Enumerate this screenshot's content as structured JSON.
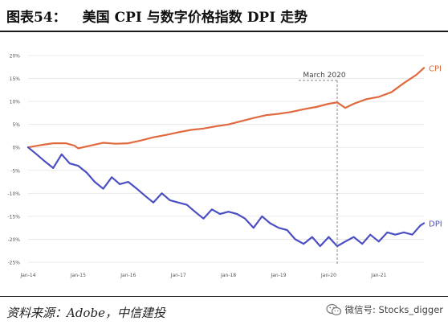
{
  "header": {
    "figure_label": "图表54：",
    "title": "美国 CPI 与数字价格指数 DPI 走势"
  },
  "footer": {
    "source": "资料来源：Adobe，中信建投",
    "watermark": "微信号: Stocks_digger"
  },
  "colors": {
    "cpi": "#e0693e",
    "dpi": "#4b4fc4",
    "annotation": "#888888"
  },
  "chart_data": {
    "type": "line",
    "title": "",
    "xlabel": "",
    "ylabel": "",
    "ylim": [
      -25,
      20
    ],
    "yticks": [
      20,
      15,
      10,
      5,
      0,
      -5,
      -10,
      -15,
      -20,
      -25
    ],
    "ytick_labels": [
      "20%",
      "15%",
      "10%",
      "5%",
      "0%",
      "-5%",
      "-10%",
      "-15%",
      "-20%",
      "-25%"
    ],
    "xticks": [
      {
        "label": "Jan-14",
        "t": 0
      },
      {
        "label": "Jan-15",
        "t": 1
      },
      {
        "label": "Jan-16",
        "t": 2
      },
      {
        "label": "Jan-17",
        "t": 3
      },
      {
        "label": "Jan-18",
        "t": 4
      },
      {
        "label": "Jan-19",
        "t": 5
      },
      {
        "label": "Jan-20",
        "t": 6
      },
      {
        "label": "Jan-21",
        "t": 7
      }
    ],
    "xlim": [
      0,
      7.9
    ],
    "grid": true,
    "annotation": {
      "label": "March 2020",
      "t": 6.17
    },
    "series": [
      {
        "name": "CPI",
        "label_position": "right-end",
        "points": [
          [
            0.0,
            0.0
          ],
          [
            0.25,
            0.5
          ],
          [
            0.5,
            0.9
          ],
          [
            0.75,
            0.9
          ],
          [
            0.92,
            0.4
          ],
          [
            1.0,
            -0.2
          ],
          [
            1.25,
            0.4
          ],
          [
            1.5,
            1.0
          ],
          [
            1.75,
            0.8
          ],
          [
            2.0,
            0.9
          ],
          [
            2.25,
            1.5
          ],
          [
            2.5,
            2.2
          ],
          [
            2.75,
            2.7
          ],
          [
            3.0,
            3.3
          ],
          [
            3.25,
            3.8
          ],
          [
            3.5,
            4.1
          ],
          [
            3.75,
            4.6
          ],
          [
            4.0,
            5.0
          ],
          [
            4.25,
            5.7
          ],
          [
            4.5,
            6.4
          ],
          [
            4.75,
            7.0
          ],
          [
            5.0,
            7.3
          ],
          [
            5.25,
            7.7
          ],
          [
            5.5,
            8.3
          ],
          [
            5.75,
            8.8
          ],
          [
            6.0,
            9.5
          ],
          [
            6.17,
            9.8
          ],
          [
            6.33,
            8.6
          ],
          [
            6.5,
            9.5
          ],
          [
            6.75,
            10.5
          ],
          [
            7.0,
            11.0
          ],
          [
            7.25,
            12.0
          ],
          [
            7.5,
            14.0
          ],
          [
            7.75,
            15.8
          ],
          [
            7.9,
            17.3
          ]
        ]
      },
      {
        "name": "DPI",
        "label_position": "right-end",
        "points": [
          [
            0.0,
            0.0
          ],
          [
            0.17,
            -1.5
          ],
          [
            0.33,
            -3.0
          ],
          [
            0.5,
            -4.5
          ],
          [
            0.67,
            -1.5
          ],
          [
            0.83,
            -3.5
          ],
          [
            1.0,
            -4.0
          ],
          [
            1.17,
            -5.5
          ],
          [
            1.33,
            -7.5
          ],
          [
            1.5,
            -9.0
          ],
          [
            1.67,
            -6.5
          ],
          [
            1.83,
            -8.0
          ],
          [
            2.0,
            -7.5
          ],
          [
            2.17,
            -9.0
          ],
          [
            2.33,
            -10.5
          ],
          [
            2.5,
            -12.0
          ],
          [
            2.67,
            -10.0
          ],
          [
            2.83,
            -11.5
          ],
          [
            3.0,
            -12.0
          ],
          [
            3.17,
            -12.5
          ],
          [
            3.33,
            -14.0
          ],
          [
            3.5,
            -15.5
          ],
          [
            3.67,
            -13.5
          ],
          [
            3.83,
            -14.5
          ],
          [
            4.0,
            -14.0
          ],
          [
            4.17,
            -14.5
          ],
          [
            4.33,
            -15.5
          ],
          [
            4.5,
            -17.5
          ],
          [
            4.67,
            -15.0
          ],
          [
            4.83,
            -16.5
          ],
          [
            5.0,
            -17.5
          ],
          [
            5.17,
            -18.0
          ],
          [
            5.33,
            -20.0
          ],
          [
            5.5,
            -21.0
          ],
          [
            5.67,
            -19.5
          ],
          [
            5.83,
            -21.5
          ],
          [
            6.0,
            -19.5
          ],
          [
            6.17,
            -21.5
          ],
          [
            6.33,
            -20.5
          ],
          [
            6.5,
            -19.5
          ],
          [
            6.67,
            -21.0
          ],
          [
            6.83,
            -19.0
          ],
          [
            7.0,
            -20.5
          ],
          [
            7.17,
            -18.5
          ],
          [
            7.33,
            -19.0
          ],
          [
            7.5,
            -18.5
          ],
          [
            7.67,
            -19.0
          ],
          [
            7.83,
            -17.0
          ],
          [
            7.9,
            -16.5
          ]
        ]
      }
    ]
  }
}
